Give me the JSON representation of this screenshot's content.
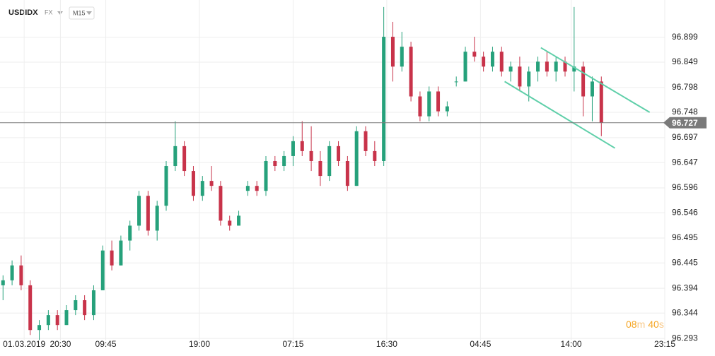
{
  "toolbar": {
    "symbol": "USDIDX",
    "market": "FX",
    "interval": "M15"
  },
  "timer": {
    "minutes": "08",
    "minutes_unit": "m",
    "seconds": "40",
    "seconds_unit": "s"
  },
  "chart_data": {
    "type": "candlestick",
    "up_color": "#26a17b",
    "down_color": "#c8334a",
    "grid": true,
    "xlim": [
      0,
      220
    ],
    "ylim": [
      96.289,
      96.974
    ],
    "xticks": [
      {
        "value": 8,
        "label": "01.03.2019"
      },
      {
        "value": 20,
        "label": "20:30"
      },
      {
        "value": 35,
        "label": "09:45"
      },
      {
        "value": 66,
        "label": "19:00"
      },
      {
        "value": 97,
        "label": "07:15"
      },
      {
        "value": 128,
        "label": "16:30"
      },
      {
        "value": 159,
        "label": "04:45"
      },
      {
        "value": 189,
        "label": "14:00"
      },
      {
        "value": 220,
        "label": "23:15"
      }
    ],
    "yticks": [
      96.899,
      96.849,
      96.798,
      96.748,
      96.697,
      96.647,
      96.596,
      96.546,
      96.495,
      96.445,
      96.394,
      96.344,
      96.293
    ],
    "x": [
      1,
      4,
      7,
      10,
      13,
      16,
      19,
      22,
      25,
      28,
      31,
      34,
      37,
      40,
      43,
      46,
      49,
      52,
      55,
      58,
      61,
      64,
      67,
      70,
      73,
      76,
      79,
      82,
      85,
      88,
      91,
      94,
      97,
      100,
      103,
      106,
      109,
      112,
      115,
      118,
      121,
      124,
      127,
      130,
      133,
      136,
      139,
      142,
      145,
      148,
      151,
      154,
      157,
      160,
      163,
      166,
      169,
      172,
      175,
      178,
      181,
      184,
      187,
      190,
      193,
      196,
      199
    ],
    "open": [
      96.4,
      96.41,
      96.44,
      96.4,
      96.31,
      96.32,
      96.34,
      96.32,
      96.35,
      96.37,
      96.34,
      96.39,
      96.47,
      96.44,
      96.49,
      96.52,
      96.58,
      96.51,
      96.56,
      96.64,
      96.68,
      96.63,
      96.58,
      96.61,
      96.6,
      96.53,
      96.52,
      96.59,
      96.6,
      96.59,
      96.65,
      96.64,
      96.66,
      96.69,
      96.67,
      96.65,
      96.62,
      96.68,
      96.65,
      96.6,
      96.71,
      96.67,
      96.65,
      96.9,
      96.84,
      96.88,
      96.78,
      96.74,
      96.79,
      96.75,
      96.81,
      96.81,
      96.87,
      96.86,
      96.84,
      96.87,
      96.83,
      96.84,
      96.8,
      96.83,
      96.85,
      96.83,
      96.85,
      96.83,
      96.84,
      96.78,
      96.81
    ],
    "high": [
      96.42,
      96.45,
      96.46,
      96.41,
      96.33,
      96.35,
      96.35,
      96.36,
      96.38,
      96.38,
      96.4,
      96.48,
      96.49,
      96.5,
      96.53,
      96.59,
      96.59,
      96.57,
      96.65,
      96.73,
      96.69,
      96.64,
      96.62,
      96.64,
      96.61,
      96.54,
      96.55,
      96.61,
      96.61,
      96.66,
      96.66,
      96.67,
      96.7,
      96.73,
      96.72,
      96.67,
      96.69,
      96.69,
      96.66,
      96.72,
      96.72,
      96.69,
      96.96,
      96.93,
      96.91,
      96.89,
      96.79,
      96.8,
      96.8,
      96.77,
      96.82,
      96.88,
      96.9,
      96.87,
      96.88,
      96.88,
      96.85,
      96.86,
      96.84,
      96.86,
      96.87,
      96.86,
      96.86,
      96.96,
      96.85,
      96.82,
      96.82
    ],
    "low": [
      96.37,
      96.4,
      96.39,
      96.3,
      96.29,
      96.31,
      96.31,
      96.32,
      96.34,
      96.33,
      96.33,
      96.39,
      96.43,
      96.44,
      96.47,
      96.51,
      96.5,
      96.49,
      96.55,
      96.63,
      96.62,
      96.57,
      96.57,
      96.59,
      96.52,
      96.51,
      96.52,
      96.58,
      96.58,
      96.58,
      96.63,
      96.63,
      96.64,
      96.66,
      96.63,
      96.6,
      96.61,
      96.64,
      96.59,
      96.6,
      96.66,
      96.64,
      96.64,
      96.81,
      96.83,
      96.77,
      96.73,
      96.73,
      96.74,
      96.74,
      96.8,
      96.81,
      96.85,
      96.83,
      96.83,
      96.82,
      96.81,
      96.79,
      96.77,
      96.81,
      96.82,
      96.81,
      96.82,
      96.79,
      96.74,
      96.73,
      96.7
    ],
    "close": [
      96.41,
      96.44,
      96.4,
      96.31,
      96.32,
      96.34,
      96.32,
      96.35,
      96.37,
      96.34,
      96.39,
      96.47,
      96.44,
      96.49,
      96.52,
      96.58,
      96.51,
      96.56,
      96.64,
      96.68,
      96.63,
      96.58,
      96.61,
      96.6,
      96.53,
      96.52,
      96.54,
      96.6,
      96.59,
      96.65,
      96.64,
      96.66,
      96.69,
      96.67,
      96.65,
      96.62,
      96.68,
      96.65,
      96.6,
      96.71,
      96.67,
      96.65,
      96.9,
      96.84,
      96.88,
      96.78,
      96.74,
      96.79,
      96.75,
      96.76,
      96.81,
      96.87,
      96.86,
      96.84,
      96.87,
      96.83,
      96.84,
      96.8,
      96.83,
      96.85,
      96.83,
      96.85,
      96.83,
      96.84,
      96.78,
      96.81,
      96.727
    ],
    "last_price": 96.727,
    "last_price_color": "#7a7a7a",
    "trendline_color": "#5fcfa9",
    "trendlines": [
      {
        "x": [
          179,
          215
        ],
        "y": [
          96.878,
          96.748
        ]
      },
      {
        "x": [
          167,
          203.5
        ],
        "y": [
          96.81,
          96.676
        ]
      }
    ]
  }
}
